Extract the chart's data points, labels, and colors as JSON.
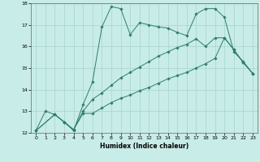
{
  "xlabel": "Humidex (Indice chaleur)",
  "xlim": [
    -0.5,
    23.5
  ],
  "ylim": [
    12,
    18
  ],
  "yticks": [
    12,
    13,
    14,
    15,
    16,
    17,
    18
  ],
  "xticks": [
    0,
    1,
    2,
    3,
    4,
    5,
    6,
    7,
    8,
    9,
    10,
    11,
    12,
    13,
    14,
    15,
    16,
    17,
    18,
    19,
    20,
    21,
    22,
    23
  ],
  "bg_color": "#c8ece8",
  "grid_color": "#a8d4ce",
  "line_color": "#2e7d6e",
  "line1_x": [
    0,
    1,
    2,
    3,
    4,
    5,
    6,
    7,
    8,
    9,
    10,
    11,
    12,
    13,
    14,
    15,
    16,
    17,
    18,
    19,
    20,
    21,
    22,
    23
  ],
  "line1_y": [
    12.1,
    13.0,
    12.85,
    12.5,
    12.1,
    13.3,
    14.35,
    16.9,
    17.85,
    17.75,
    16.55,
    17.1,
    17.0,
    16.9,
    16.85,
    16.65,
    16.5,
    17.5,
    17.75,
    17.75,
    17.35,
    15.75,
    15.3,
    14.75
  ],
  "line2_x": [
    0,
    2,
    3,
    4,
    5,
    6,
    7,
    8,
    9,
    10,
    11,
    12,
    13,
    14,
    15,
    16,
    17,
    18,
    19,
    20,
    21,
    22,
    23
  ],
  "line2_y": [
    12.1,
    12.85,
    12.5,
    12.15,
    13.0,
    13.55,
    13.85,
    14.2,
    14.55,
    14.8,
    15.05,
    15.3,
    15.55,
    15.75,
    15.95,
    16.1,
    16.35,
    16.0,
    16.4,
    16.4,
    15.85,
    15.25,
    14.75
  ],
  "line3_x": [
    0,
    2,
    3,
    4,
    5,
    6,
    7,
    8,
    9,
    10,
    11,
    12,
    13,
    14,
    15,
    16,
    17,
    18,
    19,
    20,
    21,
    22,
    23
  ],
  "line3_y": [
    12.1,
    12.85,
    12.5,
    12.15,
    12.9,
    12.9,
    13.15,
    13.4,
    13.6,
    13.75,
    13.95,
    14.1,
    14.3,
    14.5,
    14.65,
    14.8,
    15.0,
    15.2,
    15.45,
    16.4,
    15.85,
    15.25,
    14.75
  ]
}
